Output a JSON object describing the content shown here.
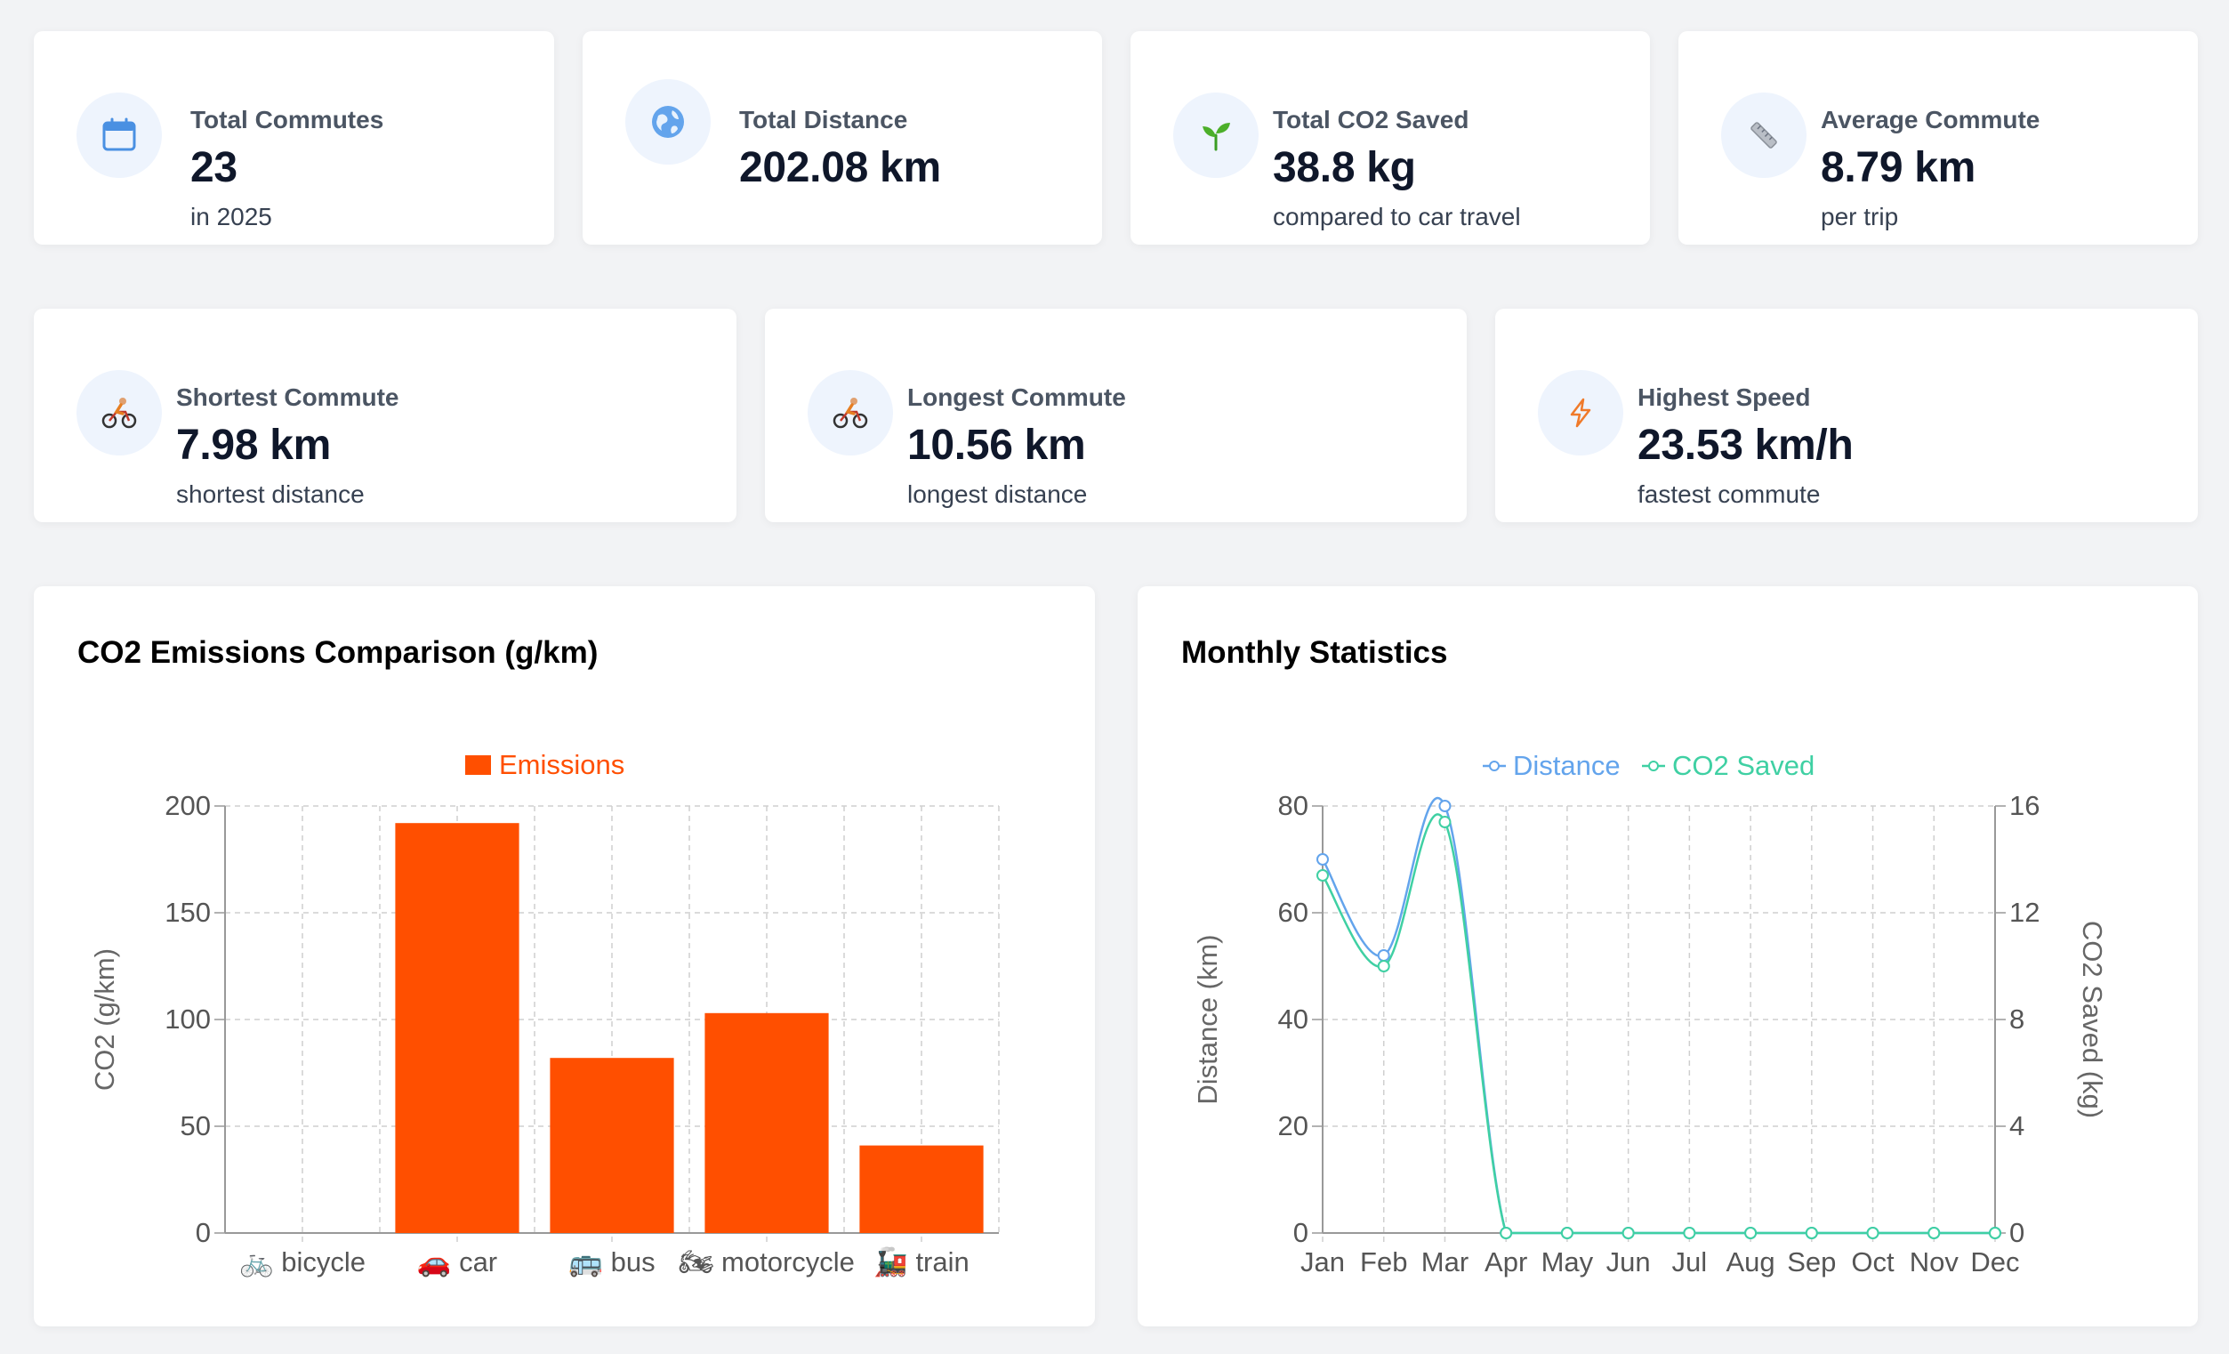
{
  "stats_row1": [
    {
      "label": "Total Commutes",
      "value": "23",
      "sub": "in 2025",
      "icon": "calendar-icon"
    },
    {
      "label": "Total Distance",
      "value": "202.08 km",
      "sub": "",
      "icon": "globe-icon"
    },
    {
      "label": "Total CO2 Saved",
      "value": "38.8 kg",
      "sub": "compared to car travel",
      "icon": "seedling-icon"
    },
    {
      "label": "Average Commute",
      "value": "8.79 km",
      "sub": "per trip",
      "icon": "ruler-icon"
    }
  ],
  "stats_row2": [
    {
      "label": "Shortest Commute",
      "value": "7.98 km",
      "sub": "shortest distance",
      "icon": "cyclist-icon"
    },
    {
      "label": "Longest Commute",
      "value": "10.56 km",
      "sub": "longest distance",
      "icon": "cyclist-icon"
    },
    {
      "label": "Highest Speed",
      "value": "23.53 km/h",
      "sub": "fastest commute",
      "icon": "lightning-icon"
    }
  ],
  "emissions_card": {
    "title": "CO2 Emissions Comparison (g/km)"
  },
  "monthly_card": {
    "title": "Monthly Statistics"
  },
  "colors": {
    "emissions": "#ff4f00",
    "distance": "#63a4ec",
    "co2": "#3fd0a3",
    "icon_bg": "#eef4fd"
  },
  "chart_data": [
    {
      "type": "bar",
      "title": "",
      "legend": "Emissions",
      "categories": [
        "🚲 bicycle",
        "🚗 car",
        "🚌 bus",
        "🏍 motorcycle",
        "🚂 train"
      ],
      "values": [
        0,
        192,
        82,
        103,
        41
      ],
      "ylabel": "CO2 (g/km)",
      "ylim": [
        0,
        200
      ],
      "yticks": [
        0,
        50,
        100,
        150,
        200
      ],
      "grid": true,
      "legend_position": "top"
    },
    {
      "type": "line",
      "title": "",
      "x": [
        "Jan",
        "Feb",
        "Mar",
        "Apr",
        "May",
        "Jun",
        "Jul",
        "Aug",
        "Sep",
        "Oct",
        "Nov",
        "Dec"
      ],
      "series": [
        {
          "name": "Distance",
          "axis": "left",
          "values": [
            70,
            52,
            80,
            0,
            0,
            0,
            0,
            0,
            0,
            0,
            0,
            0
          ]
        },
        {
          "name": "CO2 Saved",
          "axis": "right",
          "values": [
            13.4,
            10,
            15.4,
            0,
            0,
            0,
            0,
            0,
            0,
            0,
            0,
            0
          ]
        }
      ],
      "ylabel": "Distance (km)",
      "ylim": [
        0,
        80
      ],
      "yticks": [
        0,
        20,
        40,
        60,
        80
      ],
      "y2label": "CO2 Saved (kg)",
      "y2lim": [
        0,
        16
      ],
      "y2ticks": [
        0,
        4,
        8,
        12,
        16
      ],
      "grid": true,
      "legend_position": "top"
    }
  ]
}
